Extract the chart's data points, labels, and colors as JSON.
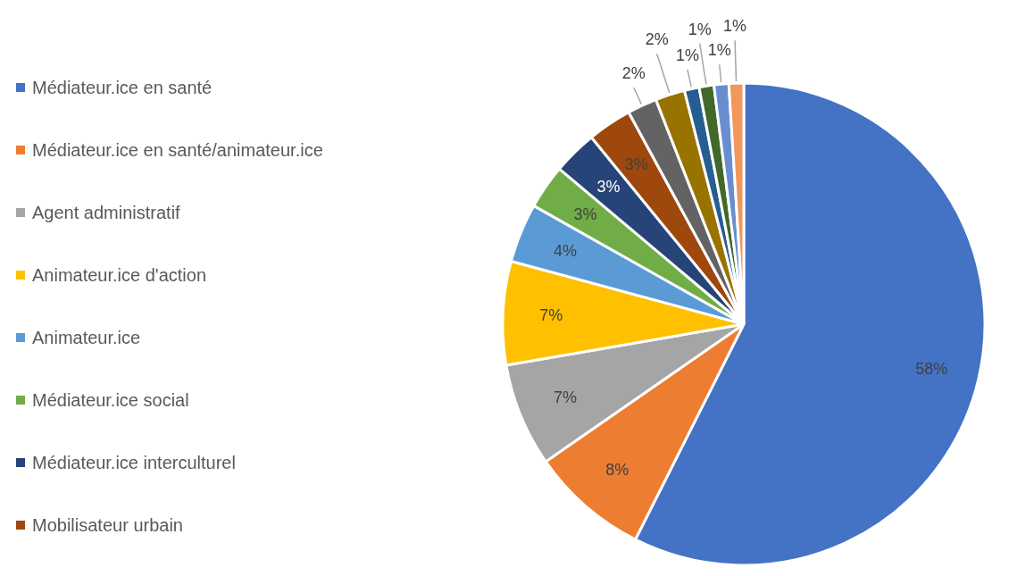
{
  "chart_data": {
    "type": "pie",
    "categories": [
      "Médiateur.ice en santé",
      "Médiateur.ice en santé/animateur.ice",
      "Agent administratif",
      "Animateur.ice d'action",
      "Animateur.ice",
      "Médiateur.ice social",
      "Médiateur.ice interculturel",
      "Mobilisateur urbain",
      null,
      null,
      null,
      null,
      null,
      null
    ],
    "values": [
      58,
      8,
      7,
      7,
      4,
      3,
      3,
      3,
      2,
      2,
      1,
      1,
      1,
      1
    ],
    "value_labels": [
      "58%",
      "8%",
      "7%",
      "7%",
      "4%",
      "3%",
      "3%",
      "3%",
      "2%",
      "2%",
      "1%",
      "1%",
      "1%",
      "1%"
    ],
    "colors": [
      "#4472c4",
      "#ed7d31",
      "#a5a5a5",
      "#ffc000",
      "#5b9bd5",
      "#70ad47",
      "#264478",
      "#9e480e",
      "#636363",
      "#997300",
      "#255e91",
      "#43682b",
      "#698ed0",
      "#f1975a"
    ],
    "legend": "left"
  }
}
